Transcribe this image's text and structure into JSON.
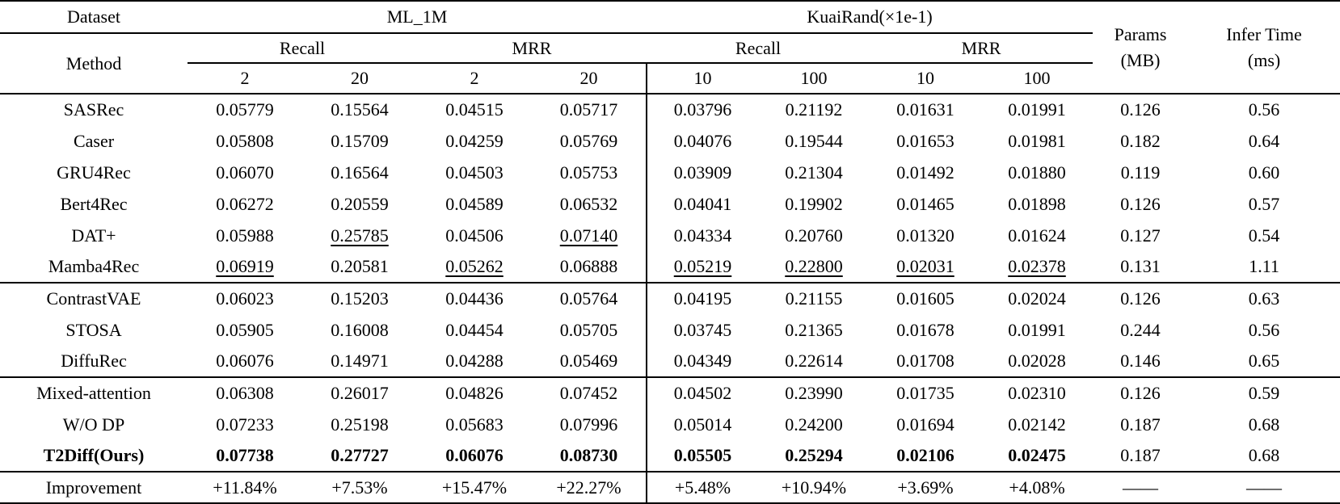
{
  "page": {
    "background": "#ffffff",
    "text_color": "#000000"
  },
  "table": {
    "header": {
      "dataset_label": "Dataset",
      "method_label": "Method",
      "group_ml1m": "ML_1M",
      "group_kuairand": "KuaiRand(×1e-1)",
      "ml1m_recall": "Recall",
      "ml1m_mrr": "MRR",
      "kuairand_recall": "Recall",
      "kuairand_mrr": "MRR",
      "ml1m_cutoffs": [
        "2",
        "20",
        "2",
        "20"
      ],
      "kuairand_cutoffs": [
        "10",
        "100",
        "10",
        "100"
      ],
      "params_label_line1": "Params",
      "params_label_line2": "(MB)",
      "infer_label_line1": "Infer Time",
      "infer_label_line2": "(ms)"
    },
    "rows": [
      {
        "method": "SASRec",
        "cells": [
          "0.05779",
          "0.15564",
          "0.04515",
          "0.05717",
          "0.03796",
          "0.21192",
          "0.01631",
          "0.01991"
        ],
        "params": "0.126",
        "infer": "0.56",
        "underline": [],
        "bold": false,
        "section_start": false
      },
      {
        "method": "Caser",
        "cells": [
          "0.05808",
          "0.15709",
          "0.04259",
          "0.05769",
          "0.04076",
          "0.19544",
          "0.01653",
          "0.01981"
        ],
        "params": "0.182",
        "infer": "0.64",
        "underline": [],
        "bold": false,
        "section_start": false
      },
      {
        "method": "GRU4Rec",
        "cells": [
          "0.06070",
          "0.16564",
          "0.04503",
          "0.05753",
          "0.03909",
          "0.21304",
          "0.01492",
          "0.01880"
        ],
        "params": "0.119",
        "infer": "0.60",
        "underline": [],
        "bold": false,
        "section_start": false
      },
      {
        "method": "Bert4Rec",
        "cells": [
          "0.06272",
          "0.20559",
          "0.04589",
          "0.06532",
          "0.04041",
          "0.19902",
          "0.01465",
          "0.01898"
        ],
        "params": "0.126",
        "infer": "0.57",
        "underline": [],
        "bold": false,
        "section_start": false
      },
      {
        "method": "DAT+",
        "cells": [
          "0.05988",
          "0.25785",
          "0.04506",
          "0.07140",
          "0.04334",
          "0.20760",
          "0.01320",
          "0.01624"
        ],
        "params": "0.127",
        "infer": "0.54",
        "underline": [
          1,
          3
        ],
        "bold": false,
        "section_start": false
      },
      {
        "method": "Mamba4Rec",
        "cells": [
          "0.06919",
          "0.20581",
          "0.05262",
          "0.06888",
          "0.05219",
          "0.22800",
          "0.02031",
          "0.02378"
        ],
        "params": "0.131",
        "infer": "1.11",
        "underline": [
          0,
          2,
          4,
          5,
          6,
          7
        ],
        "bold": false,
        "section_start": false
      },
      {
        "method": "ContrastVAE",
        "cells": [
          "0.06023",
          "0.15203",
          "0.04436",
          "0.05764",
          "0.04195",
          "0.21155",
          "0.01605",
          "0.02024"
        ],
        "params": "0.126",
        "infer": "0.63",
        "underline": [],
        "bold": false,
        "section_start": true
      },
      {
        "method": "STOSA",
        "cells": [
          "0.05905",
          "0.16008",
          "0.04454",
          "0.05705",
          "0.03745",
          "0.21365",
          "0.01678",
          "0.01991"
        ],
        "params": "0.244",
        "infer": "0.56",
        "underline": [],
        "bold": false,
        "section_start": false
      },
      {
        "method": "DiffuRec",
        "cells": [
          "0.06076",
          "0.14971",
          "0.04288",
          "0.05469",
          "0.04349",
          "0.22614",
          "0.01708",
          "0.02028"
        ],
        "params": "0.146",
        "infer": "0.65",
        "underline": [],
        "bold": false,
        "section_start": false
      },
      {
        "method": "Mixed-attention",
        "cells": [
          "0.06308",
          "0.26017",
          "0.04826",
          "0.07452",
          "0.04502",
          "0.23990",
          "0.01735",
          "0.02310"
        ],
        "params": "0.126",
        "infer": "0.59",
        "underline": [],
        "bold": false,
        "section_start": true
      },
      {
        "method": "W/O DP",
        "cells": [
          "0.07233",
          "0.25198",
          "0.05683",
          "0.07996",
          "0.05014",
          "0.24200",
          "0.01694",
          "0.02142"
        ],
        "params": "0.187",
        "infer": "0.68",
        "underline": [],
        "bold": false,
        "section_start": false
      },
      {
        "method": "T2Diff(Ours)",
        "cells": [
          "0.07738",
          "0.27727",
          "0.06076",
          "0.08730",
          "0.05505",
          "0.25294",
          "0.02106",
          "0.02475"
        ],
        "params": "0.187",
        "infer": "0.68",
        "underline": [],
        "bold": true,
        "section_start": false
      },
      {
        "method": "Improvement",
        "cells": [
          "+11.84%",
          "+7.53%",
          "+15.47%",
          "+22.27%",
          "+5.48%",
          "+10.94%",
          "+3.69%",
          "+4.08%"
        ],
        "params": "——",
        "infer": "——",
        "underline": [],
        "bold": false,
        "section_start": true
      }
    ]
  }
}
